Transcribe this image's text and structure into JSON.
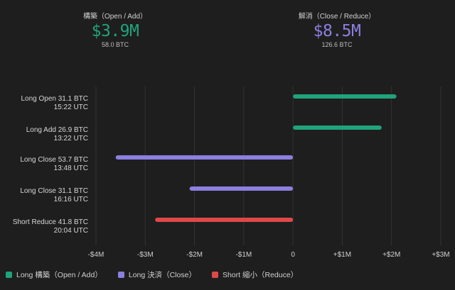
{
  "summary": {
    "open": {
      "label": "構築（Open / Add）",
      "value": "$3.9M",
      "sub": "58.0 BTC",
      "color": "#1fa37a"
    },
    "close": {
      "label": "解消（Close / Reduce）",
      "value": "$8.5M",
      "sub": "126.6 BTC",
      "color": "#8b7fe0"
    }
  },
  "chart_data": {
    "type": "bar",
    "orientation": "horizontal",
    "xlim": [
      -4,
      3
    ],
    "x_ticks": [
      -4,
      -3,
      -2,
      -1,
      0,
      1,
      2,
      3
    ],
    "x_tick_labels": [
      "-$4M",
      "-$3M",
      "-$2M",
      "-$1M",
      "0",
      "+$1M",
      "+$2M",
      "+$3M"
    ],
    "grid": true,
    "legend_position": "bottom-left",
    "rows": [
      {
        "label": "Long Open  31.1 BTC",
        "time": "15:22 UTC",
        "value": 2.1,
        "series": "long_open"
      },
      {
        "label": "Long Add  26.9 BTC",
        "time": "13:22 UTC",
        "value": 1.8,
        "series": "long_open"
      },
      {
        "label": "Long Close  53.7 BTC",
        "time": "13:48 UTC",
        "value": -3.6,
        "series": "long_close"
      },
      {
        "label": "Long Close  31.1 BTC",
        "time": "16:16 UTC",
        "value": -2.1,
        "series": "long_close"
      },
      {
        "label": "Short Reduce  41.8 BTC",
        "time": "20:04 UTC",
        "value": -2.8,
        "series": "short_reduce"
      }
    ],
    "series": [
      {
        "key": "long_open",
        "name": "Long 構築（Open / Add）",
        "color": "#1fa37a"
      },
      {
        "key": "long_close",
        "name": "Long 決済（Close）",
        "color": "#8b7fe0"
      },
      {
        "key": "short_reduce",
        "name": "Short 縮小（Reduce）",
        "color": "#e04848"
      }
    ]
  }
}
